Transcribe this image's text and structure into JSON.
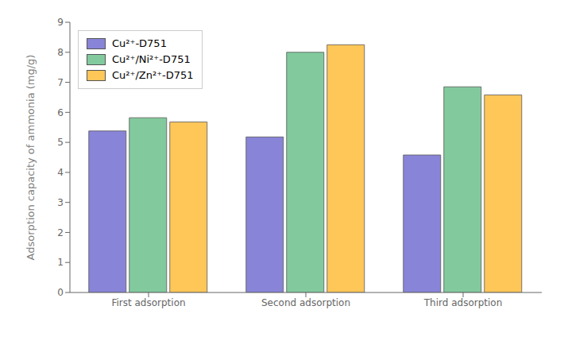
{
  "chart_data": {
    "type": "bar",
    "categories": [
      "First adsorption",
      "Second adsorption",
      "Third adsorption"
    ],
    "series": [
      {
        "name": "Cu²⁺-D751",
        "color": "#8884d8",
        "values": [
          5.38,
          5.18,
          4.58
        ]
      },
      {
        "name": "Cu²⁺/Ni²⁺-D751",
        "color": "#82ca9d",
        "values": [
          5.82,
          8.0,
          6.85
        ]
      },
      {
        "name": "Cu²⁺/Zn²⁺-D751",
        "color": "#ffc658",
        "values": [
          5.68,
          8.25,
          6.58
        ]
      }
    ],
    "ylabel": "Adsorption capacity of ammonia (mg/g)",
    "ylim": [
      0,
      9
    ],
    "yticks": [
      0,
      1,
      2,
      3,
      4,
      5,
      6,
      7,
      8,
      9
    ],
    "grid": false,
    "legend": "upper left"
  }
}
